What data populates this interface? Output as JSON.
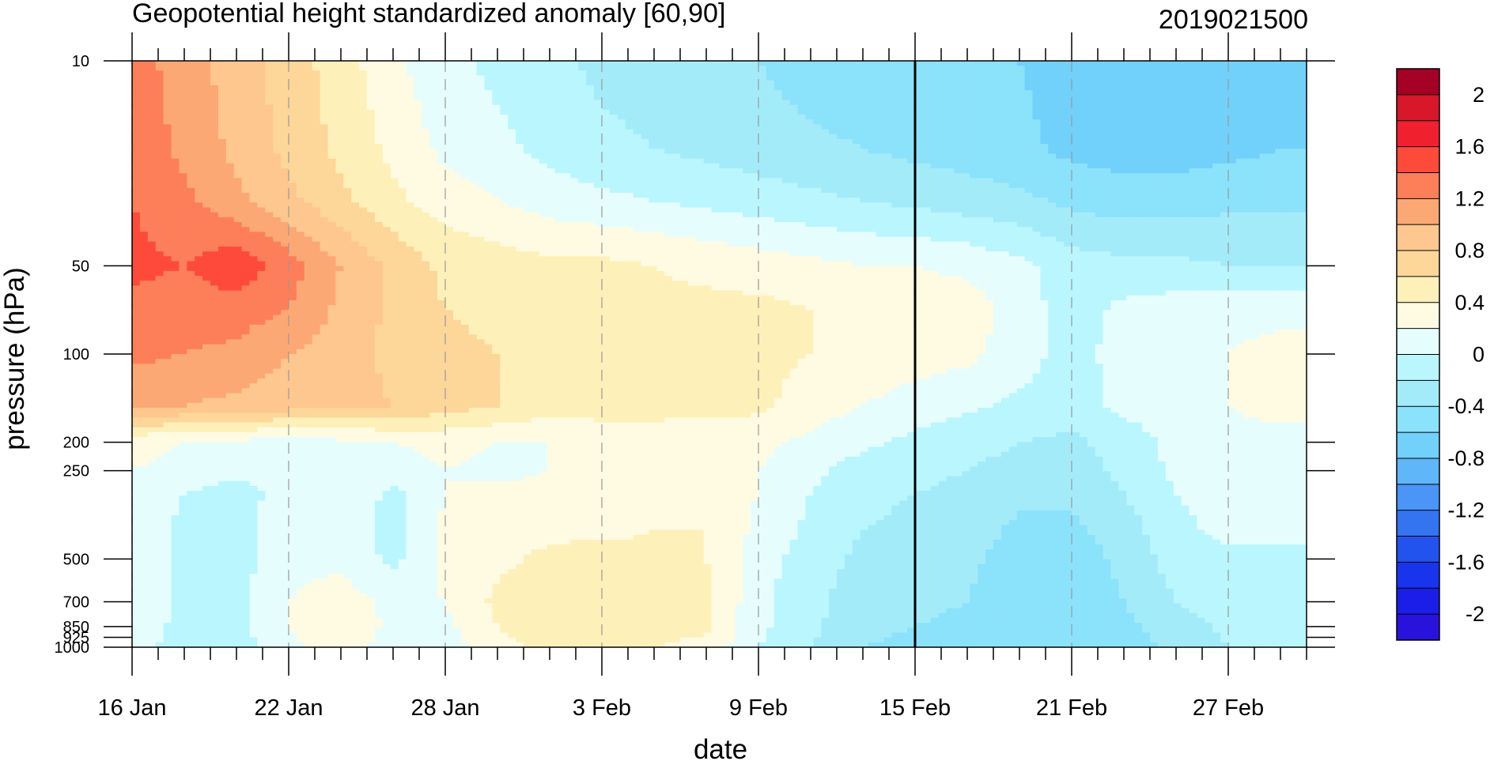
{
  "chart_data": {
    "type": "heatmap",
    "title": "Geopotential height standardized anomaly [60,90]",
    "subtitle_right": "2019021500",
    "xlabel": "date",
    "ylabel": "pressure (hPa)",
    "x_ticks": [
      "16 Jan",
      "22 Jan",
      "28 Jan",
      "3 Feb",
      "9 Feb",
      "15 Feb",
      "21 Feb",
      "27 Feb"
    ],
    "x_tick_day": [
      0,
      6,
      12,
      18,
      24,
      30,
      36,
      42
    ],
    "x_range_days": [
      0,
      45
    ],
    "y_scale": "log",
    "y_ticks": [
      10,
      50,
      100,
      200,
      250,
      500,
      700,
      850,
      925,
      1000
    ],
    "y_ticks_labels": [
      "10",
      "50",
      "100",
      "200",
      "250",
      "500",
      "700",
      "850",
      "925",
      "1000"
    ],
    "ylim": [
      1000,
      10
    ],
    "vertical_marker_day": 30,
    "colorbar": {
      "labels": [
        "2",
        "1.6",
        "1.2",
        "0.8",
        "0.4",
        "0",
        "-0.4",
        "-0.8",
        "-1.2",
        "-1.6",
        "-2"
      ],
      "levels": [
        2.2,
        2.0,
        1.8,
        1.6,
        1.4,
        1.2,
        1.0,
        0.8,
        0.6,
        0.4,
        0.2,
        0.0,
        -0.2,
        -0.4,
        -0.6,
        -0.8,
        -1.0,
        -1.2,
        -1.4,
        -1.6,
        -1.8,
        -2.0,
        -2.2
      ],
      "colors": [
        "#a50026",
        "#d7182a",
        "#f0202f",
        "#fe4a3b",
        "#fd7f5a",
        "#fca874",
        "#fdc78f",
        "#fdd69a",
        "#fef0b9",
        "#fffbe2",
        "#e6fdfd",
        "#baf6fd",
        "#a4ebfa",
        "#8be2fb",
        "#72d1fa",
        "#5fb6f8",
        "#4a95f5",
        "#3474f1",
        "#2353ee",
        "#1834ec",
        "#1b1ee6",
        "#2a12dd"
      ]
    },
    "days": [
      0,
      2,
      4,
      6,
      8,
      10,
      12,
      14,
      16,
      18,
      20,
      22,
      24,
      26,
      28,
      30,
      32,
      34,
      36,
      38,
      40,
      42,
      44,
      45
    ],
    "levels_hPa": [
      10,
      20,
      30,
      50,
      70,
      100,
      150,
      200,
      250,
      300,
      400,
      500,
      700,
      850,
      1000
    ],
    "values": [
      [
        1.3,
        1.1,
        0.9,
        0.7,
        0.5,
        0.25,
        0.05,
        -0.05,
        -0.15,
        -0.25,
        -0.3,
        -0.35,
        -0.4,
        -0.5,
        -0.55,
        -0.5,
        -0.55,
        -0.6,
        -0.7,
        -0.75,
        -0.7,
        -0.65,
        -0.65,
        -0.65
      ],
      [
        1.35,
        1.15,
        0.95,
        0.75,
        0.55,
        0.35,
        0.15,
        0.05,
        -0.05,
        -0.15,
        -0.2,
        -0.25,
        -0.3,
        -0.35,
        -0.4,
        -0.45,
        -0.5,
        -0.55,
        -0.65,
        -0.7,
        -0.7,
        -0.65,
        -0.6,
        -0.6
      ],
      [
        1.4,
        1.25,
        1.05,
        0.85,
        0.65,
        0.45,
        0.3,
        0.2,
        0.1,
        0.05,
        0.0,
        -0.05,
        -0.1,
        -0.15,
        -0.2,
        -0.25,
        -0.3,
        -0.35,
        -0.45,
        -0.5,
        -0.5,
        -0.45,
        -0.45,
        -0.45
      ],
      [
        1.45,
        1.4,
        1.55,
        1.3,
        1.0,
        0.75,
        0.55,
        0.5,
        0.45,
        0.45,
        0.4,
        0.35,
        0.3,
        0.25,
        0.2,
        0.2,
        0.15,
        0.05,
        -0.1,
        -0.15,
        -0.15,
        -0.2,
        -0.2,
        -0.2
      ],
      [
        1.35,
        1.3,
        1.3,
        1.2,
        0.95,
        0.75,
        0.6,
        0.55,
        0.5,
        0.45,
        0.45,
        0.45,
        0.45,
        0.4,
        0.3,
        0.3,
        0.3,
        0.1,
        -0.1,
        0.05,
        0.1,
        0.15,
        0.15,
        0.15
      ],
      [
        1.25,
        1.2,
        1.15,
        1.0,
        0.9,
        0.75,
        0.65,
        0.6,
        0.55,
        0.5,
        0.5,
        0.5,
        0.45,
        0.4,
        0.35,
        0.3,
        0.25,
        0.1,
        -0.1,
        0.1,
        0.15,
        0.2,
        0.25,
        0.25
      ],
      [
        1.05,
        1.0,
        0.95,
        0.9,
        0.85,
        0.8,
        0.7,
        0.6,
        0.5,
        0.5,
        0.5,
        0.45,
        0.45,
        0.3,
        0.2,
        0.1,
        0.05,
        -0.05,
        -0.1,
        0.05,
        0.1,
        0.2,
        0.3,
        0.3
      ],
      [
        0.25,
        0.2,
        0.15,
        0.1,
        0.15,
        0.2,
        0.25,
        0.2,
        0.2,
        0.25,
        0.25,
        0.3,
        0.25,
        0.15,
        0.05,
        -0.05,
        -0.15,
        -0.2,
        -0.25,
        -0.1,
        0.05,
        0.1,
        0.1,
        0.1
      ],
      [
        0.2,
        0.15,
        0.05,
        0.1,
        0.15,
        0.1,
        0.2,
        0.15,
        0.2,
        0.25,
        0.25,
        0.25,
        0.2,
        0.05,
        -0.1,
        -0.15,
        -0.2,
        -0.25,
        -0.3,
        -0.15,
        0.05,
        0.1,
        0.1,
        0.1
      ],
      [
        0.15,
        0.0,
        -0.1,
        0.1,
        0.15,
        -0.05,
        0.2,
        0.25,
        0.25,
        0.3,
        0.3,
        0.3,
        0.2,
        0.0,
        -0.15,
        -0.2,
        -0.25,
        -0.35,
        -0.35,
        -0.2,
        0.0,
        0.1,
        0.1,
        0.1
      ],
      [
        0.15,
        -0.05,
        -0.1,
        0.15,
        0.15,
        -0.1,
        0.25,
        0.3,
        0.35,
        0.35,
        0.4,
        0.4,
        0.15,
        -0.05,
        -0.2,
        -0.25,
        -0.3,
        -0.45,
        -0.45,
        -0.3,
        -0.05,
        0.05,
        0.05,
        0.05
      ],
      [
        0.15,
        -0.05,
        -0.1,
        0.15,
        0.15,
        -0.05,
        0.25,
        0.35,
        0.45,
        0.5,
        0.45,
        0.4,
        0.1,
        -0.1,
        -0.25,
        -0.3,
        -0.35,
        -0.5,
        -0.5,
        -0.35,
        -0.1,
        -0.05,
        -0.05,
        -0.05
      ],
      [
        0.15,
        -0.05,
        -0.05,
        0.2,
        0.3,
        0.15,
        0.2,
        0.45,
        0.55,
        0.5,
        0.45,
        0.45,
        0.05,
        -0.15,
        -0.3,
        -0.35,
        -0.4,
        -0.55,
        -0.55,
        -0.4,
        -0.2,
        -0.1,
        -0.1,
        -0.1
      ],
      [
        0.1,
        -0.05,
        -0.05,
        0.2,
        0.35,
        0.15,
        0.15,
        0.4,
        0.5,
        0.45,
        0.45,
        0.45,
        0.05,
        -0.15,
        -0.35,
        -0.4,
        -0.45,
        -0.55,
        -0.6,
        -0.45,
        -0.3,
        -0.15,
        -0.1,
        -0.1
      ],
      [
        0.1,
        -0.1,
        -0.1,
        0.15,
        0.3,
        0.1,
        0.1,
        0.35,
        0.45,
        0.4,
        0.4,
        0.35,
        0.0,
        -0.2,
        -0.4,
        -0.45,
        -0.5,
        -0.6,
        -0.6,
        -0.5,
        -0.35,
        -0.2,
        -0.15,
        -0.15
      ]
    ]
  }
}
